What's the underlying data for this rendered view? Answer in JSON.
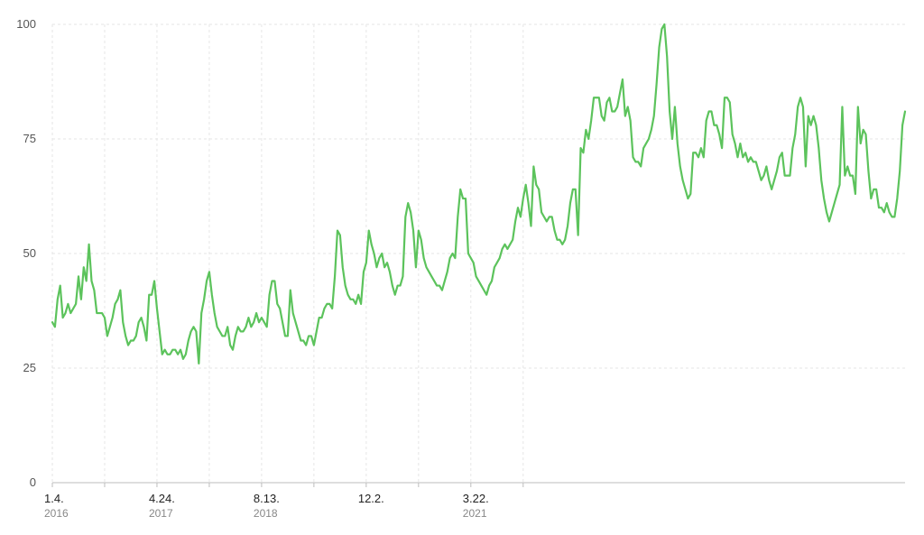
{
  "chart_data": {
    "type": "line",
    "title": "",
    "xlabel": "",
    "ylabel": "",
    "ylim": [
      0,
      100
    ],
    "yticks": [
      0,
      25,
      50,
      75,
      100
    ],
    "grid": true,
    "legend": "none",
    "colors": {
      "line": "#5cc35c",
      "grid": "#e6e6e6",
      "axis": "#bdbdbd"
    },
    "x_start_label": "2016-01-04",
    "x_interval": "weekly",
    "xticks": [
      {
        "index": 0,
        "label": "1.4.",
        "year": "2016"
      },
      {
        "index": 20,
        "label": "",
        "year": ""
      },
      {
        "index": 40,
        "label": "4.24.",
        "year": "2017"
      },
      {
        "index": 60,
        "label": "",
        "year": ""
      },
      {
        "index": 80,
        "label": "8.13.",
        "year": "2018"
      },
      {
        "index": 100,
        "label": "",
        "year": ""
      },
      {
        "index": 120,
        "label": "12.2.",
        "year": ""
      },
      {
        "index": 140,
        "label": "",
        "year": ""
      },
      {
        "index": 160,
        "label": "3.22.",
        "year": "2021"
      },
      {
        "index": 180,
        "label": "",
        "year": ""
      }
    ],
    "series": [
      {
        "name": "",
        "values": [
          35,
          34,
          40,
          43,
          36,
          37,
          39,
          37,
          38,
          39,
          45,
          40,
          47,
          44,
          52,
          44,
          42,
          37,
          37,
          37,
          36,
          32,
          34,
          36,
          39,
          40,
          42,
          35,
          32,
          30,
          31,
          31,
          32,
          35,
          36,
          34,
          31,
          41,
          41,
          44,
          38,
          33,
          28,
          29,
          28,
          28,
          29,
          29,
          28,
          29,
          27,
          28,
          31,
          33,
          34,
          33,
          26,
          37,
          40,
          44,
          46,
          41,
          37,
          34,
          33,
          32,
          32,
          34,
          30,
          29,
          32,
          34,
          33,
          33,
          34,
          36,
          34,
          35,
          37,
          35,
          36,
          35,
          34,
          41,
          44,
          44,
          39,
          38,
          35,
          32,
          32,
          42,
          37,
          35,
          33,
          31,
          31,
          30,
          32,
          32,
          30,
          33,
          36,
          36,
          38,
          39,
          39,
          38,
          45,
          55,
          54,
          47,
          43,
          41,
          40,
          40,
          39,
          41,
          39,
          46,
          48,
          55,
          52,
          50,
          47,
          49,
          50,
          47,
          48,
          46,
          43,
          41,
          43,
          43,
          45,
          58,
          61,
          59,
          55,
          47,
          55,
          53,
          49,
          47,
          46,
          45,
          44,
          43,
          43,
          42,
          44,
          46,
          49,
          50,
          49,
          58,
          64,
          62,
          62,
          50,
          49,
          48,
          45,
          44,
          43,
          42,
          41,
          43,
          44,
          47,
          48,
          49,
          51,
          52,
          51,
          52,
          53,
          57,
          60,
          58,
          62,
          65,
          61,
          56,
          69,
          65,
          64,
          59,
          58,
          57,
          58,
          58,
          55,
          53,
          53,
          52,
          53,
          56,
          61,
          64,
          64,
          54,
          73,
          72,
          77,
          75,
          79,
          84,
          84,
          84,
          80,
          79,
          83,
          84,
          81,
          81,
          82,
          85,
          88,
          80,
          82,
          79,
          71,
          70,
          70,
          69,
          73,
          74,
          75,
          77,
          80,
          87,
          95,
          99,
          100,
          93,
          81,
          75,
          82,
          74,
          69,
          66,
          64,
          62,
          63,
          72,
          72,
          71,
          73,
          71,
          79,
          81,
          81,
          78,
          78,
          76,
          73,
          84,
          84,
          83,
          76,
          74,
          71,
          74,
          71,
          72,
          70,
          71,
          70,
          70,
          68,
          66,
          67,
          69,
          66,
          64,
          66,
          68,
          71,
          72,
          67,
          67,
          67,
          73,
          76,
          82,
          84,
          82,
          69,
          80,
          78,
          80,
          78,
          73,
          66,
          62,
          59,
          57,
          59,
          61,
          63,
          65,
          82,
          67,
          69,
          67,
          67,
          63,
          82,
          74,
          77,
          76,
          68,
          62,
          64,
          64,
          60,
          60,
          59,
          61,
          59,
          58,
          58,
          62,
          68,
          78,
          81
        ]
      }
    ]
  }
}
